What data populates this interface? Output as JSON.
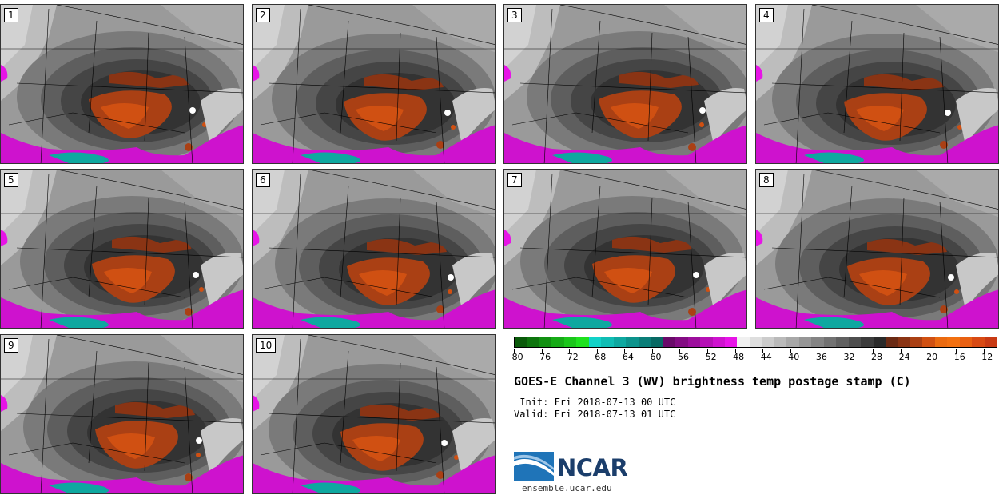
{
  "panels": [
    {
      "label": "1"
    },
    {
      "label": "2"
    },
    {
      "label": "3"
    },
    {
      "label": "4"
    },
    {
      "label": "5"
    },
    {
      "label": "6"
    },
    {
      "label": "7"
    },
    {
      "label": "8"
    },
    {
      "label": "9"
    },
    {
      "label": "10"
    }
  ],
  "colorbar": {
    "colors": [
      "#0a5a0a",
      "#0e750e",
      "#129012",
      "#16ab16",
      "#1ac61a",
      "#1ee11e",
      "#12d2c8",
      "#10bdb4",
      "#0ea8a0",
      "#0c938c",
      "#0a7e78",
      "#086964",
      "#6a0a6a",
      "#830c83",
      "#9c0e9c",
      "#b510b5",
      "#ce12ce",
      "#e714e7",
      "#f0f0f0",
      "#dedede",
      "#cccccc",
      "#bababa",
      "#a8a8a8",
      "#969696",
      "#848484",
      "#727272",
      "#606060",
      "#4e4e4e",
      "#3c3c3c",
      "#2a2a2a",
      "#6a2a14",
      "#8a3414",
      "#aa4014",
      "#d05012",
      "#ea6a10",
      "#f27010",
      "#e86012",
      "#d84a14",
      "#c83a14"
    ],
    "tick_labels": [
      "−80",
      "−76",
      "−72",
      "−68",
      "−64",
      "−60",
      "−56",
      "−52",
      "−48",
      "−44",
      "−40",
      "−36",
      "−32",
      "−28",
      "−24",
      "−20",
      "−16",
      "−12"
    ],
    "tick_values": [
      -80,
      -76,
      -72,
      -68,
      -64,
      -60,
      -56,
      -52,
      -48,
      -44,
      -40,
      -36,
      -32,
      -28,
      -24,
      -20,
      -16,
      -12
    ],
    "range": [
      -80,
      -10
    ]
  },
  "title": "GOES-E Channel 3 (WV) brightness temp postage stamp (C)",
  "init": " Init: Fri 2018-07-13 00 UTC",
  "valid": "Valid: Fri 2018-07-13 01 UTC",
  "logo": {
    "text": "NCAR",
    "url_text": "ensemble.ucar.edu",
    "brand_color": "#1b3e6b"
  }
}
